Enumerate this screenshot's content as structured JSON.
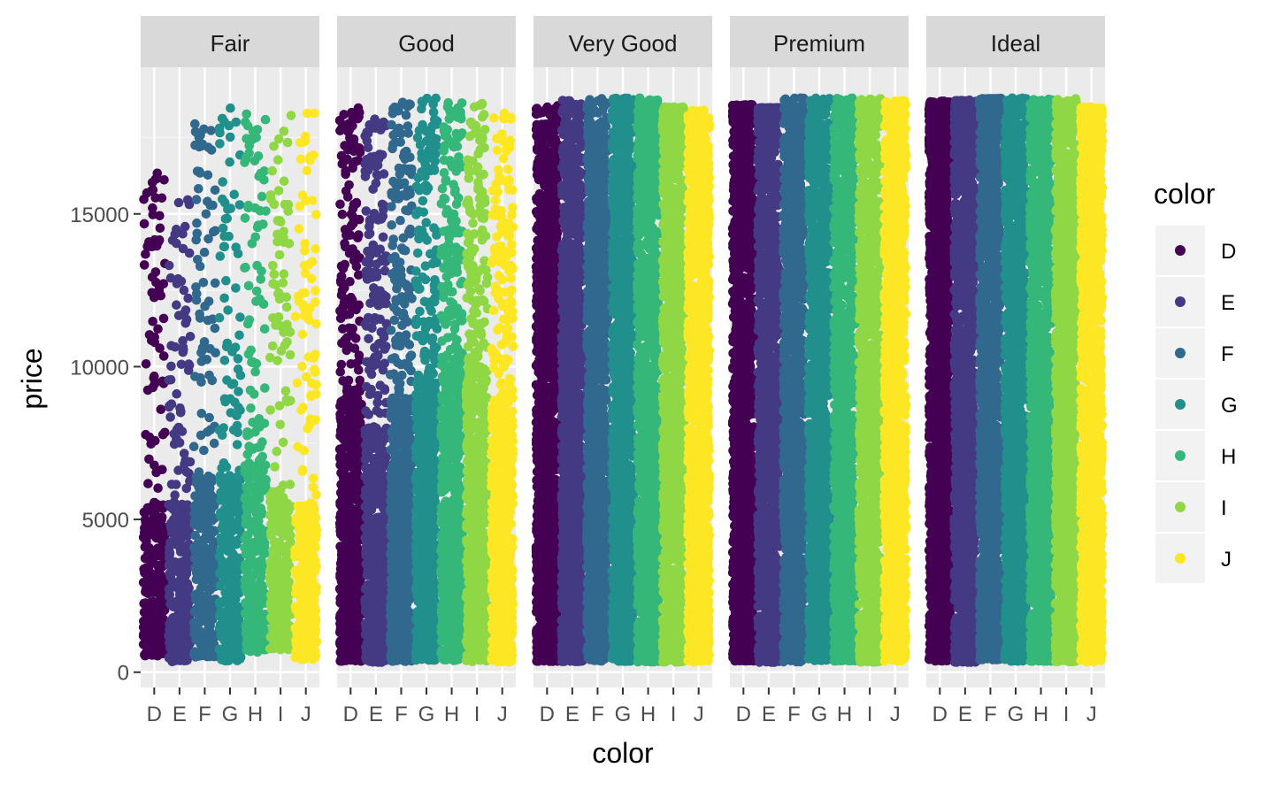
{
  "chart_data": {
    "type": "scatter",
    "geom": "jitter",
    "facet_by": "cut",
    "facets": [
      "Fair",
      "Good",
      "Very Good",
      "Premium",
      "Ideal"
    ],
    "categories": [
      "D",
      "E",
      "F",
      "G",
      "H",
      "I",
      "J"
    ],
    "xlabel": "color",
    "ylabel": "price",
    "y_ticks": [
      0,
      5000,
      10000,
      15000
    ],
    "y_tick_labels": [
      "0",
      "5000",
      "10000",
      "15000"
    ],
    "ylim": [
      -500,
      19800
    ],
    "grid": true,
    "legend": {
      "title": "color",
      "position": "right",
      "entries": [
        "D",
        "E",
        "F",
        "G",
        "H",
        "I",
        "J"
      ]
    },
    "colors": {
      "D": "#440154",
      "E": "#443A83",
      "F": "#31688E",
      "G": "#21908C",
      "H": "#35B779",
      "I": "#8FD744",
      "J": "#FDE725"
    },
    "panel_background": "#EBEBEB",
    "strip_background": "#D9D9D9",
    "approx_price_ranges": [
      {
        "cut": "Fair",
        "series": [
          {
            "color": "D",
            "min": 536,
            "max": 16386,
            "dense_max": 5500
          },
          {
            "color": "E",
            "min": 337,
            "max": 15584,
            "dense_max": 5500
          },
          {
            "color": "F",
            "min": 496,
            "max": 17995,
            "dense_max": 6500
          },
          {
            "color": "G",
            "min": 369,
            "max": 18574,
            "dense_max": 6500
          },
          {
            "color": "H",
            "min": 659,
            "max": 18565,
            "dense_max": 7500
          },
          {
            "color": "I",
            "min": 735,
            "max": 18242,
            "dense_max": 6000
          },
          {
            "color": "J",
            "min": 416,
            "max": 18531,
            "dense_max": 5500
          }
        ]
      },
      {
        "cut": "Good",
        "series": [
          {
            "color": "D",
            "min": 361,
            "max": 18468,
            "dense_max": 9000
          },
          {
            "color": "E",
            "min": 327,
            "max": 18236,
            "dense_max": 8000
          },
          {
            "color": "F",
            "min": 357,
            "max": 18686,
            "dense_max": 9000
          },
          {
            "color": "G",
            "min": 394,
            "max": 18788,
            "dense_max": 9500
          },
          {
            "color": "H",
            "min": 368,
            "max": 18640,
            "dense_max": 10500
          },
          {
            "color": "I",
            "min": 351,
            "max": 18707,
            "dense_max": 10000
          },
          {
            "color": "J",
            "min": 335,
            "max": 18325,
            "dense_max": 9000
          }
        ]
      },
      {
        "cut": "Very Good",
        "series": [
          {
            "color": "D",
            "min": 357,
            "max": 18542,
            "dense_max": 14000
          },
          {
            "color": "E",
            "min": 352,
            "max": 18731,
            "dense_max": 13500
          },
          {
            "color": "F",
            "min": 357,
            "max": 18777,
            "dense_max": 14500
          },
          {
            "color": "G",
            "min": 354,
            "max": 18818,
            "dense_max": 15000
          },
          {
            "color": "H",
            "min": 337,
            "max": 18803,
            "dense_max": 16000
          },
          {
            "color": "I",
            "min": 336,
            "max": 18500,
            "dense_max": 17500
          },
          {
            "color": "J",
            "min": 336,
            "max": 18430,
            "dense_max": 15000
          }
        ]
      },
      {
        "cut": "Premium",
        "series": [
          {
            "color": "D",
            "min": 367,
            "max": 18575,
            "dense_max": 18000
          },
          {
            "color": "E",
            "min": 326,
            "max": 18477,
            "dense_max": 18200
          },
          {
            "color": "F",
            "min": 342,
            "max": 18791,
            "dense_max": 18800
          },
          {
            "color": "G",
            "min": 382,
            "max": 18741,
            "dense_max": 18800
          },
          {
            "color": "H",
            "min": 368,
            "max": 18795,
            "dense_max": 18800
          },
          {
            "color": "I",
            "min": 334,
            "max": 18797,
            "dense_max": 18800
          },
          {
            "color": "J",
            "min": 363,
            "max": 18710,
            "dense_max": 18710
          }
        ]
      },
      {
        "cut": "Ideal",
        "series": [
          {
            "color": "D",
            "min": 367,
            "max": 18693,
            "dense_max": 17000
          },
          {
            "color": "E",
            "min": 326,
            "max": 18729,
            "dense_max": 17500
          },
          {
            "color": "F",
            "min": 408,
            "max": 18780,
            "dense_max": 18500
          },
          {
            "color": "G",
            "min": 361,
            "max": 18806,
            "dense_max": 18806
          },
          {
            "color": "H",
            "min": 357,
            "max": 18760,
            "dense_max": 18760
          },
          {
            "color": "I",
            "min": 348,
            "max": 18779,
            "dense_max": 18779
          },
          {
            "color": "J",
            "min": 340,
            "max": 18508,
            "dense_max": 17500
          }
        ]
      }
    ]
  }
}
